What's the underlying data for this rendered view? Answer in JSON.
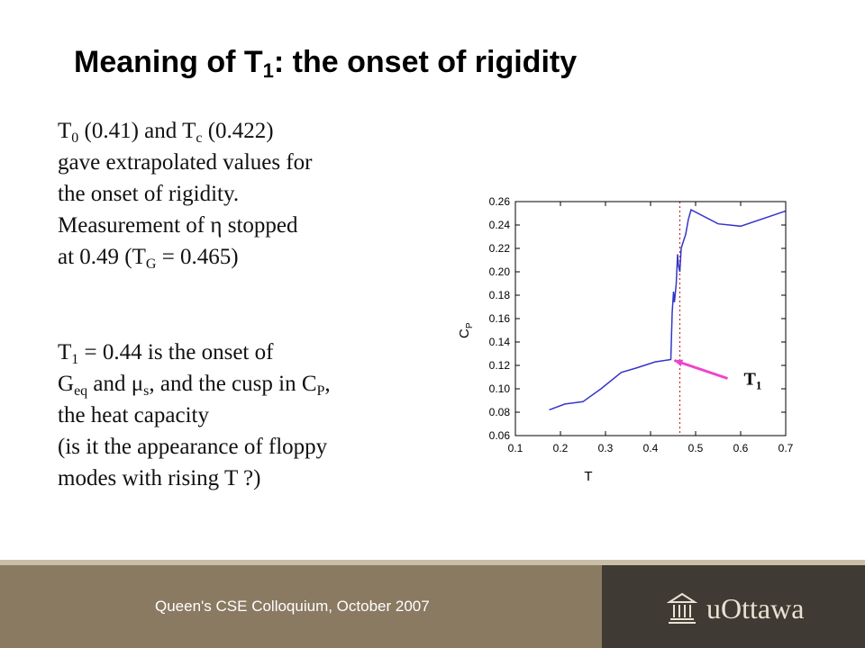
{
  "slide": {
    "title_pre": "Meaning of T",
    "title_sub": "1",
    "title_post": ": the onset of rigidity",
    "para1": {
      "l1_a": "T",
      "l1_a_sub": "0",
      "l1_b": " (0.41) and T",
      "l1_b_sub": "c",
      "l1_c": " (0.422)",
      "l2": "gave extrapolated values for",
      "l3": "the onset of rigidity.",
      "l4": "Measurement of η stopped",
      "l5_a": "at 0.49 (T",
      "l5_a_sub": "G",
      "l5_b": " = 0.465)"
    },
    "para2": {
      "l1_a": "T",
      "l1_a_sub": "1",
      "l1_b": " = 0.44 is the onset of",
      "l2_a": "G",
      "l2_a_sub": "eq",
      "l2_b": " and μ",
      "l2_b_sub": "s",
      "l2_c": ", and the cusp in C",
      "l2_c_sub": "P",
      "l2_d": ",",
      "l3": "the heat capacity",
      "l4": "(is it the appearance of floppy",
      "l5": "modes with rising T ?)"
    }
  },
  "footer": {
    "text": "Queen's CSE Colloquium, October 2007",
    "logo_text": "uOttawa",
    "logo_icon": "building-icon"
  },
  "chart_data": {
    "type": "line",
    "xlabel": "T",
    "ylabel": "C",
    "ylabel_sub": "P",
    "xlim": [
      0.1,
      0.7
    ],
    "ylim": [
      0.06,
      0.26
    ],
    "xticks": [
      "0.1",
      "0.2",
      "0.3",
      "0.4",
      "0.5",
      "0.6",
      "0.7"
    ],
    "yticks": [
      "0.06",
      "0.08",
      "0.10",
      "0.12",
      "0.14",
      "0.16",
      "0.18",
      "0.20",
      "0.22",
      "0.24",
      "0.26"
    ],
    "line_color": "#3535c8",
    "series": [
      {
        "x": [
          0.175,
          0.21,
          0.25,
          0.29,
          0.335,
          0.37,
          0.41,
          0.445,
          0.448,
          0.451,
          0.453,
          0.455,
          0.457,
          0.46,
          0.462,
          0.465,
          0.468,
          0.472,
          0.478,
          0.484,
          0.49,
          0.55,
          0.6,
          0.7
        ],
        "y": [
          0.082,
          0.087,
          0.089,
          0.1,
          0.114,
          0.118,
          0.123,
          0.125,
          0.165,
          0.183,
          0.174,
          0.182,
          0.19,
          0.215,
          0.205,
          0.2,
          0.22,
          0.225,
          0.232,
          0.245,
          0.253,
          0.241,
          0.239,
          0.252
        ]
      }
    ],
    "vline": {
      "x": 0.465,
      "color": "#c82828",
      "style": "dotted"
    },
    "arrow": {
      "label": "T",
      "label_sub": "1",
      "target_x": 0.445,
      "target_y": 0.125,
      "color": "#ee44cc"
    }
  }
}
